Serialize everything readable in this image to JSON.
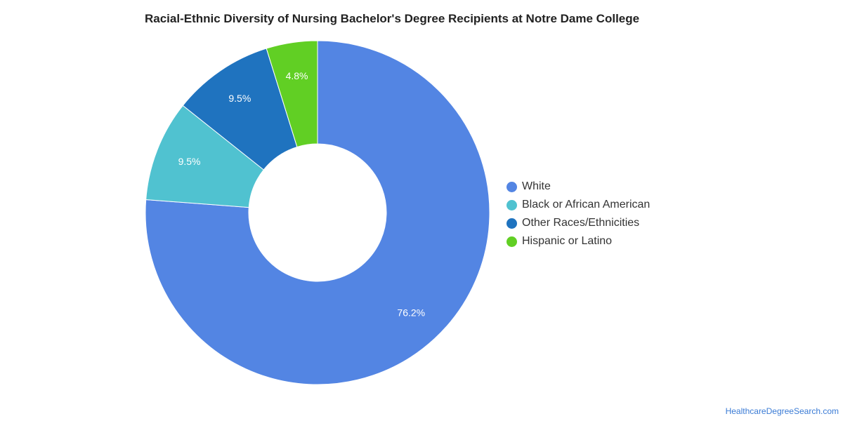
{
  "chart_data": {
    "type": "pie",
    "title": "Racial-Ethnic Diversity of Nursing Bachelor's Degree Recipients at Notre Dame College",
    "donut": true,
    "categories": [
      "White",
      "Black or African American",
      "Other Races/Ethnicities",
      "Hispanic or Latino"
    ],
    "values": [
      76.2,
      9.5,
      9.5,
      4.8
    ],
    "labels": [
      "76.2%",
      "9.5%",
      "9.5%",
      "4.8%"
    ],
    "colors": [
      "#5385e3",
      "#50c2d0",
      "#1f73bf",
      "#61cf24"
    ],
    "legend_position": "right"
  },
  "legend": {
    "items": [
      {
        "label": "White",
        "color": "#5385e3"
      },
      {
        "label": "Black or African American",
        "color": "#50c2d0"
      },
      {
        "label": "Other Races/Ethnicities",
        "color": "#1f73bf"
      },
      {
        "label": "Hispanic or Latino",
        "color": "#61cf24"
      }
    ]
  },
  "source": {
    "text": "HealthcareDegreeSearch.com"
  }
}
